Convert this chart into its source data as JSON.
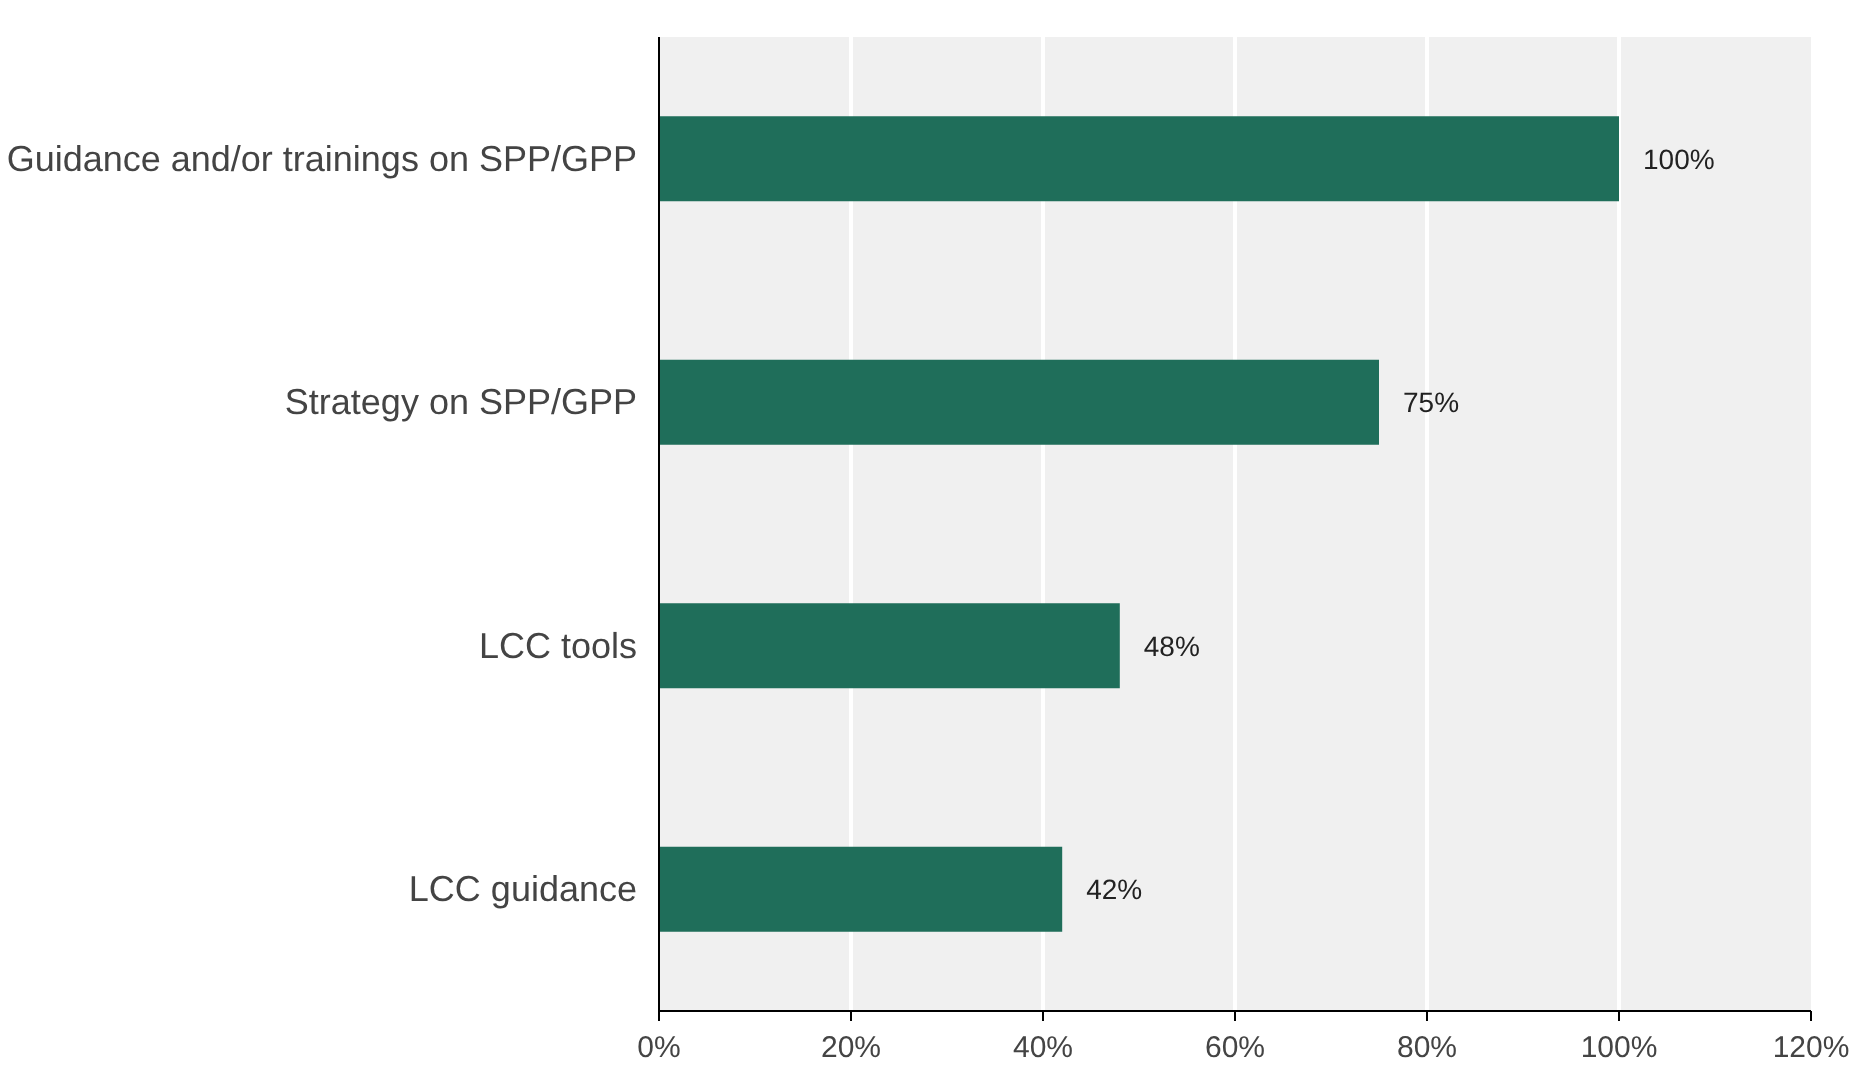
{
  "chart_data": {
    "type": "bar",
    "orientation": "horizontal",
    "categories": [
      "Guidance and/or trainings on SPP/GPP",
      "Strategy on SPP/GPP",
      "LCC tools",
      "LCC guidance"
    ],
    "values": [
      100,
      75,
      48,
      42
    ],
    "color": "#1f6e5a",
    "value_labels": [
      "100%",
      "75%",
      "48%",
      "42%"
    ],
    "xlim": [
      0,
      120
    ],
    "xticks": [
      {
        "value": 0,
        "label": "0%"
      },
      {
        "value": 20,
        "label": "20%"
      },
      {
        "value": 40,
        "label": "40%"
      },
      {
        "value": 60,
        "label": "60%"
      },
      {
        "value": 80,
        "label": "80%"
      },
      {
        "value": 100,
        "label": "100%"
      },
      {
        "value": 120,
        "label": "120%"
      }
    ],
    "grid": "x"
  }
}
